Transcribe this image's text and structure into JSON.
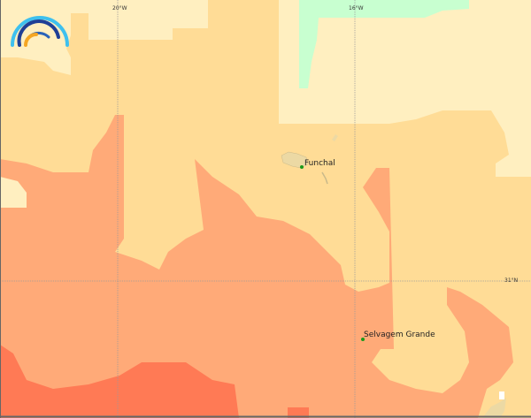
{
  "map": {
    "grid_labels": {
      "lon_left": "20°W",
      "lon_right": "16°W",
      "lat": "31°N"
    },
    "places": [
      {
        "name": "Funchal"
      },
      {
        "name": "Selvagem Grande"
      }
    ],
    "colors": {
      "lightest": "#ffefc0",
      "light": "#ffdc96",
      "medium": "#ffaa78",
      "high": "#ff7a55",
      "low": "#c8ffd0",
      "land": "#ecd9a4",
      "place_marker": "#1a9a1a"
    },
    "logo": "rainbow-arcs-logo"
  }
}
